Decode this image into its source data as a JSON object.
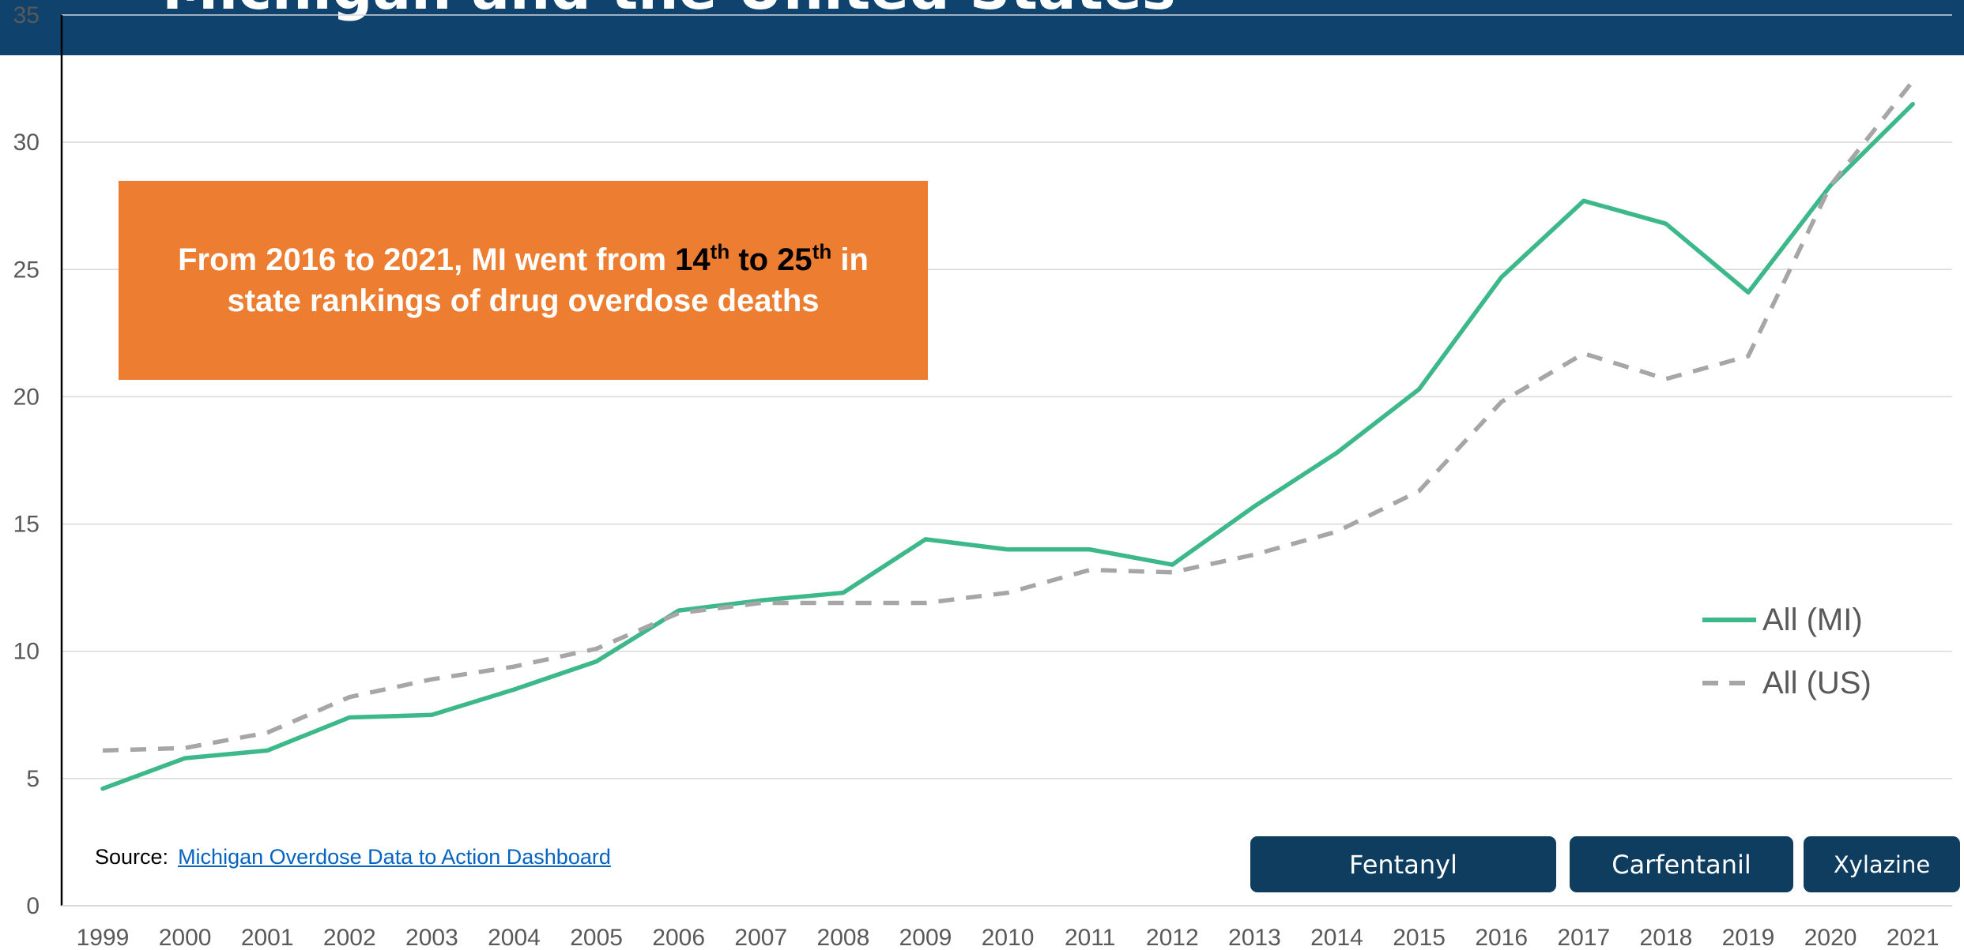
{
  "header": {
    "title": "Michigan and the United States"
  },
  "colors": {
    "header_bg": "#0f436d",
    "mi_line": "#3cb88a",
    "us_line": "#a6a6a6",
    "callout_bg": "#ed7d31",
    "button_bg": "#0f3d60",
    "link": "#0563c1"
  },
  "callout": {
    "line1_pre": "From 2016 to 2021, MI went from ",
    "rank_from": "14",
    "rank_from_suffix": "th",
    "to_word": " to ",
    "rank_to": "25",
    "rank_to_suffix": "th",
    "line1_post": " in",
    "line2": "state rankings of drug overdose deaths"
  },
  "source": {
    "label": "Source:",
    "link_text": "Michigan Overdose Data to Action Dashboard"
  },
  "buttons": {
    "fentanyl": "Fentanyl",
    "carfentanil": "Carfentanil",
    "xylazine": "Xylazine"
  },
  "chart_data": {
    "type": "line",
    "categories": [
      "1999",
      "2000",
      "2001",
      "2002",
      "2003",
      "2004",
      "2005",
      "2006",
      "2007",
      "2008",
      "2009",
      "2010",
      "2011",
      "2012",
      "2013",
      "2014",
      "2015",
      "2016",
      "2017",
      "2018",
      "2019",
      "2020",
      "2021"
    ],
    "series": [
      {
        "name": "All (MI)",
        "style": "solid",
        "color": "#3cb88a",
        "values": [
          4.6,
          5.8,
          6.1,
          7.4,
          7.5,
          8.5,
          9.6,
          11.6,
          12.0,
          12.3,
          14.4,
          14.0,
          14.0,
          13.4,
          15.7,
          17.8,
          20.3,
          24.7,
          27.7,
          26.8,
          24.1,
          28.3,
          31.5
        ]
      },
      {
        "name": "All (US)",
        "style": "dashed",
        "color": "#a6a6a6",
        "values": [
          6.1,
          6.2,
          6.8,
          8.2,
          8.9,
          9.4,
          10.1,
          11.5,
          11.9,
          11.9,
          11.9,
          12.3,
          13.2,
          13.1,
          13.8,
          14.7,
          16.3,
          19.8,
          21.7,
          20.7,
          21.6,
          28.3,
          32.4
        ]
      }
    ],
    "yticks": [
      0,
      5,
      10,
      15,
      20,
      25,
      30,
      35
    ],
    "ylim": [
      0,
      35
    ],
    "grid": "horizontal",
    "legend_position": "right"
  }
}
